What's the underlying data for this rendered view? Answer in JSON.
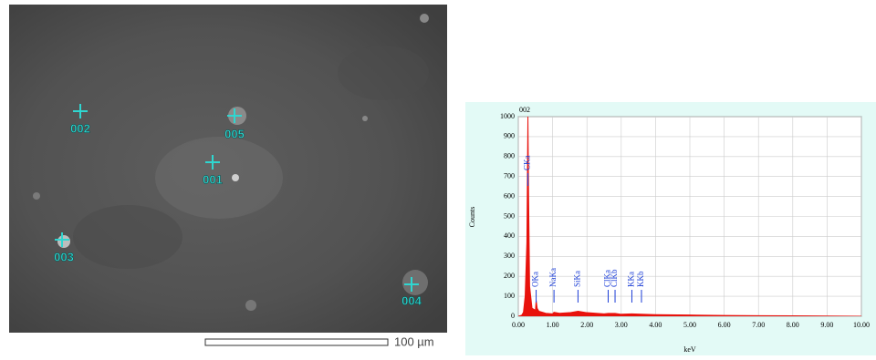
{
  "sem_image": {
    "points": [
      "001",
      "002",
      "003",
      "004",
      "005"
    ],
    "scale_label": "100 µm"
  },
  "chart_data": {
    "type": "line",
    "area": true,
    "annotation": "002",
    "xlabel": "keV",
    "ylabel": "Counts",
    "x": [
      0,
      0.1,
      0.15,
      0.2,
      0.25,
      0.28,
      0.3,
      0.33,
      0.4,
      0.5,
      0.52,
      0.55,
      0.6,
      0.8,
      1.0,
      1.04,
      1.2,
      1.5,
      1.74,
      2.0,
      2.5,
      2.62,
      2.82,
      3.0,
      3.31,
      3.59,
      4,
      5,
      6,
      7,
      8,
      9,
      10
    ],
    "series": [
      {
        "color": "#e8120c",
        "values": [
          0,
          5,
          20,
          100,
          370,
          1000,
          600,
          150,
          40,
          30,
          80,
          40,
          25,
          15,
          12,
          20,
          15,
          18,
          25,
          18,
          12,
          14,
          14,
          10,
          12,
          10,
          8,
          6,
          4,
          3,
          2,
          1,
          0
        ]
      }
    ],
    "peaks": [
      {
        "label": "CKa",
        "energy": 0.28
      },
      {
        "label": "OKa",
        "energy": 0.52
      },
      {
        "label": "NaKa",
        "energy": 1.04
      },
      {
        "label": "SiKa",
        "energy": 1.74
      },
      {
        "label": "ClKa",
        "energy": 2.62
      },
      {
        "label": "ClKb",
        "energy": 2.82
      },
      {
        "label": "KKa",
        "energy": 3.31
      },
      {
        "label": "KKb",
        "energy": 3.59
      }
    ],
    "xlim": [
      0,
      10
    ],
    "xticks": [
      {
        "value": 0,
        "label": "0.00"
      },
      {
        "value": 1,
        "label": "1.00"
      },
      {
        "value": 2,
        "label": "2.00"
      },
      {
        "value": 3,
        "label": "3.00"
      },
      {
        "value": 4,
        "label": "4.00"
      },
      {
        "value": 5,
        "label": "5.00"
      },
      {
        "value": 6,
        "label": "6.00"
      },
      {
        "value": 7,
        "label": "7.00"
      },
      {
        "value": 8,
        "label": "8.00"
      },
      {
        "value": 9,
        "label": "9.00"
      },
      {
        "value": 10,
        "label": "10.00"
      }
    ],
    "ylim": [
      0,
      1000
    ],
    "yticks": [
      0,
      100,
      200,
      300,
      400,
      500,
      600,
      700,
      800,
      900,
      1000
    ],
    "grid": true
  }
}
